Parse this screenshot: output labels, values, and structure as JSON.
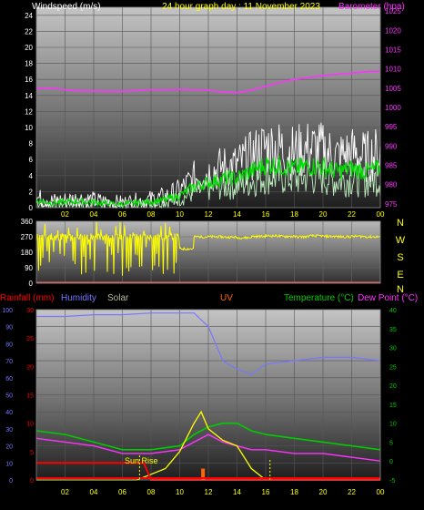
{
  "header": {
    "wind_label": "Windspeed (m/s)",
    "title": "24 hour graph day : 11 November 2023",
    "baro_label": "Barometer (hpa)"
  },
  "colors": {
    "windspeed": "#ffffff",
    "wind_avg": "#00dd00",
    "wind_gust": "#bbeebb",
    "barometer": "#ff33ff",
    "direction": "#ffff00",
    "rainfall": "#ff0000",
    "humidity": "#7777ff",
    "solar": "#ffff00",
    "uv": "#ff6600",
    "temperature": "#00cc00",
    "dewpoint": "#ff33ff",
    "axis_yellow": "#ffff00"
  },
  "lower_header": {
    "rainfall_label": "Rainfall (mm)",
    "humidity_label": "Humidity",
    "solar_label": "Solar",
    "uv_label": "UV",
    "temperature_label": "Temperature (°C)",
    "dewpoint_label": "Dew Point (°C)"
  },
  "annotations": {
    "sunrise": "Sun Rise"
  },
  "chart_data": [
    {
      "type": "line",
      "x_ticks": [
        "02",
        "04",
        "06",
        "08",
        "10",
        "12",
        "14",
        "16",
        "18",
        "20",
        "22",
        "00"
      ],
      "xlim": [
        0,
        24
      ],
      "y_left": {
        "ticks": [
          0,
          2,
          4,
          6,
          8,
          10,
          12,
          14,
          16,
          18,
          20,
          22,
          24
        ],
        "ylim": [
          0,
          25
        ]
      },
      "y_right": {
        "ticks": [
          975,
          980,
          985,
          990,
          995,
          1000,
          1005,
          1010,
          1015,
          1020,
          1025
        ],
        "ylim": [
          974,
          1026
        ]
      },
      "series": [
        {
          "name": "Windspeed (m/s)",
          "axis": "left",
          "x": [
            0,
            1,
            2,
            3,
            4,
            5,
            6,
            7,
            8,
            9,
            10,
            11,
            12,
            13,
            14,
            15,
            16,
            17,
            18,
            19,
            20,
            21,
            22,
            23,
            24
          ],
          "y": [
            1.2,
            0.8,
            0.9,
            1.1,
            0.9,
            0.7,
            0.6,
            0.8,
            1.0,
            1.3,
            2.0,
            3.5,
            4.2,
            4.8,
            5.0,
            6.0,
            7.2,
            7.0,
            6.5,
            7.0,
            6.8,
            6.0,
            6.5,
            6.0,
            6.5
          ]
        },
        {
          "name": "Barometer (hpa)",
          "axis": "right",
          "x": [
            0,
            1,
            2,
            3,
            4,
            5,
            6,
            7,
            8,
            9,
            10,
            11,
            12,
            13,
            14,
            15,
            16,
            17,
            18,
            19,
            20,
            21,
            22,
            23,
            24
          ],
          "y": [
            1005.0,
            1005.0,
            1004.6,
            1004.3,
            1004.3,
            1004.2,
            1004.2,
            1004.4,
            1004.6,
            1004.6,
            1004.7,
            1004.6,
            1004.5,
            1004.0,
            1003.8,
            1004.5,
            1005.5,
            1006.5,
            1007.3,
            1007.8,
            1008.3,
            1008.6,
            1008.9,
            1009.3,
            1009.4
          ]
        }
      ]
    },
    {
      "type": "scatter",
      "y_ticks": [
        0,
        90,
        180,
        270,
        360
      ],
      "ylim": [
        0,
        360
      ],
      "y_right_labels": [
        "N",
        "W",
        "S",
        "E",
        "N"
      ],
      "series": [
        {
          "name": "Wind direction",
          "x": [
            0,
            1,
            2,
            3,
            4,
            5,
            6,
            7,
            8,
            9,
            10,
            11,
            12,
            13,
            14,
            15,
            16,
            17,
            18,
            19,
            20,
            21,
            22,
            23,
            24
          ],
          "y": [
            270,
            190,
            260,
            140,
            230,
            180,
            250,
            130,
            220,
            240,
            200,
            270,
            270,
            268,
            265,
            272,
            275,
            272,
            270,
            275,
            272,
            270,
            272,
            270,
            272
          ]
        }
      ]
    },
    {
      "type": "line",
      "y_left": {
        "ticks": [
          0,
          10,
          20,
          30,
          40,
          50,
          60,
          70,
          80,
          90,
          100
        ],
        "ylim": [
          0,
          100
        ]
      },
      "y_rain": {
        "ticks": [
          0,
          5,
          10,
          15,
          20,
          25,
          30
        ],
        "ylim": [
          0,
          30
        ]
      },
      "y_right": {
        "ticks": [
          -5,
          0,
          5,
          10,
          15,
          20,
          25,
          30,
          35,
          40
        ],
        "ylim": [
          -5,
          40
        ]
      },
      "series": [
        {
          "name": "Humidity",
          "x": [
            0,
            2,
            4,
            6,
            8,
            10,
            11,
            12,
            13,
            14,
            15,
            16,
            18,
            20,
            22,
            24
          ],
          "y": [
            96,
            96,
            97,
            97,
            98,
            98,
            98,
            90,
            70,
            65,
            62,
            68,
            70,
            72,
            72,
            70
          ]
        },
        {
          "name": "Temperature (°C)",
          "x": [
            0,
            2,
            4,
            6,
            8,
            10,
            11,
            12,
            13,
            14,
            15,
            16,
            18,
            20,
            22,
            24
          ],
          "y": [
            8,
            7,
            5,
            3,
            3,
            4,
            7,
            9,
            10,
            10,
            8,
            7,
            6,
            5,
            4,
            3
          ]
        },
        {
          "name": "Dew Point (°C)",
          "x": [
            0,
            2,
            4,
            6,
            8,
            10,
            11,
            12,
            13,
            14,
            15,
            16,
            18,
            20,
            22,
            24
          ],
          "y": [
            6,
            5,
            4,
            2,
            2,
            3,
            5,
            7,
            5,
            4,
            3,
            3,
            2,
            2,
            1,
            0
          ]
        },
        {
          "name": "Solar",
          "x": [
            0,
            6,
            7,
            8,
            9,
            10,
            11,
            11.5,
            12,
            13,
            14,
            15,
            16,
            18,
            24
          ],
          "y": [
            0,
            0,
            0,
            1,
            2,
            5,
            10,
            12,
            9,
            7,
            6,
            2,
            0,
            0,
            0
          ]
        },
        {
          "name": "Rainfall (mm)",
          "x": [
            0,
            2,
            4,
            6,
            7.5,
            8,
            24
          ],
          "y": [
            3,
            3,
            3,
            3,
            3,
            0,
            0
          ]
        },
        {
          "name": "UV",
          "x": [
            11.5,
            12
          ],
          "y": [
            1,
            1
          ]
        }
      ]
    }
  ]
}
